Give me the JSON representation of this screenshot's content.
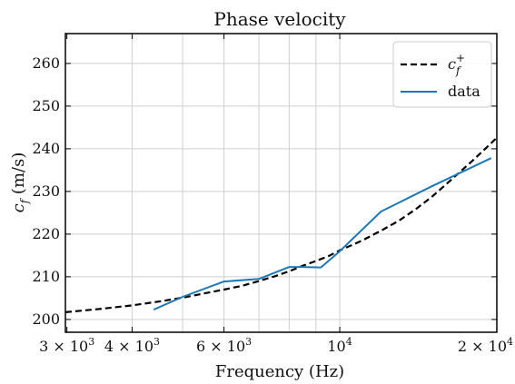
{
  "chart_data": {
    "type": "line",
    "title": "Phase velocity",
    "xlabel": "Frequency (Hz)",
    "ylabel_main": "c",
    "ylabel_sub": "f",
    "ylabel_unit": " (m/s)",
    "xscale": "log",
    "xlim": [
      2980,
      20000
    ],
    "ylim": [
      197,
      267
    ],
    "grid": true,
    "x_ticks": [
      {
        "value": 3000,
        "mant": "3 × 10",
        "exp": "3"
      },
      {
        "value": 4000,
        "mant": "4 × 10",
        "exp": "3"
      },
      {
        "value": 6000,
        "mant": "6 × 10",
        "exp": "3"
      },
      {
        "value": 10000,
        "mant": "10",
        "exp": "4"
      },
      {
        "value": 20000,
        "mant": "2 × 10",
        "exp": "4"
      }
    ],
    "x_grid": [
      4000,
      5000,
      6000,
      7000,
      8000,
      9000,
      10000,
      20000
    ],
    "y_ticks": [
      200,
      210,
      220,
      230,
      240,
      250,
      260
    ],
    "legend": {
      "position": "top-right",
      "entries": [
        {
          "series": "c_f_plus",
          "main": "c",
          "sup": "+",
          "sub": "f"
        },
        {
          "series": "data",
          "text": "data"
        }
      ]
    },
    "series": [
      {
        "key": "c_f_plus",
        "color": "#000000",
        "style": "dashed",
        "x": [
          2980,
          3500,
          4000,
          4500,
          5000,
          5500,
          6000,
          6500,
          7000,
          7500,
          8000,
          8500,
          9000,
          9500,
          10000,
          11000,
          12000,
          13000,
          14000,
          15000,
          16000,
          17000,
          18000,
          19000,
          20000
        ],
        "y": [
          201.7,
          202.5,
          203.3,
          204.2,
          205.1,
          206.1,
          207.0,
          207.9,
          209.0,
          210.1,
          211.3,
          212.6,
          213.7,
          214.8,
          216.2,
          218.4,
          220.8,
          223.2,
          225.9,
          228.7,
          231.7,
          234.6,
          237.3,
          240.0,
          242.6
        ]
      },
      {
        "key": "data",
        "name": "data",
        "color": "#1f77b4",
        "style": "solid",
        "x": [
          4400,
          5000,
          6000,
          7000,
          8000,
          8500,
          9200,
          10000,
          12000,
          15000,
          19500
        ],
        "y": [
          202.3,
          205.3,
          208.9,
          209.5,
          212.3,
          212.3,
          212.2,
          216.0,
          225.3,
          231.2,
          237.8
        ]
      }
    ]
  }
}
